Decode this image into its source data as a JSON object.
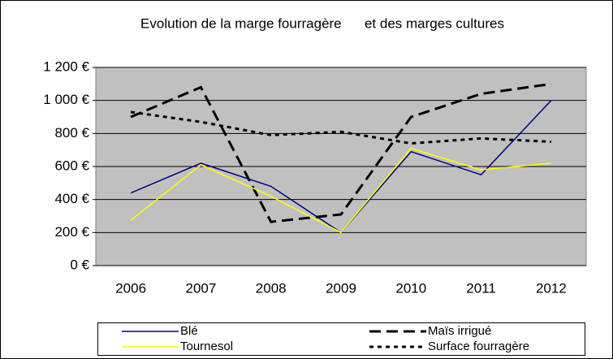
{
  "chart_data": {
    "type": "line",
    "title": "Evolution de la marge fourragère      et des marges cultures",
    "categories": [
      "2006",
      "2007",
      "2008",
      "2009",
      "2010",
      "2011",
      "2012"
    ],
    "series": [
      {
        "name": "Blé",
        "color": "#000080",
        "dash": "solid",
        "values": [
          440,
          620,
          480,
          200,
          690,
          550,
          1000
        ]
      },
      {
        "name": "Maïs irrigué",
        "color": "#000000",
        "dash": "dashed",
        "values": [
          900,
          1080,
          265,
          310,
          900,
          1040,
          1100
        ]
      },
      {
        "name": "Tournesol",
        "color": "#ffff00",
        "dash": "solid",
        "values": [
          275,
          610,
          420,
          200,
          710,
          580,
          620
        ]
      },
      {
        "name": "Surface fourragère",
        "color": "#000000",
        "dash": "dotted",
        "values": [
          930,
          870,
          790,
          810,
          740,
          770,
          750
        ]
      }
    ],
    "ylim": [
      0,
      1200
    ],
    "yticks": [
      {
        "value": 0,
        "label": "0 €"
      },
      {
        "value": 200,
        "label": "200 €"
      },
      {
        "value": 400,
        "label": "400 €"
      },
      {
        "value": 600,
        "label": "600 €"
      },
      {
        "value": 800,
        "label": "800 €"
      },
      {
        "value": 1000,
        "label": "1 000 €"
      },
      {
        "value": 1200,
        "label": "1 200 €"
      }
    ],
    "grid": true,
    "legend": "bottom"
  }
}
